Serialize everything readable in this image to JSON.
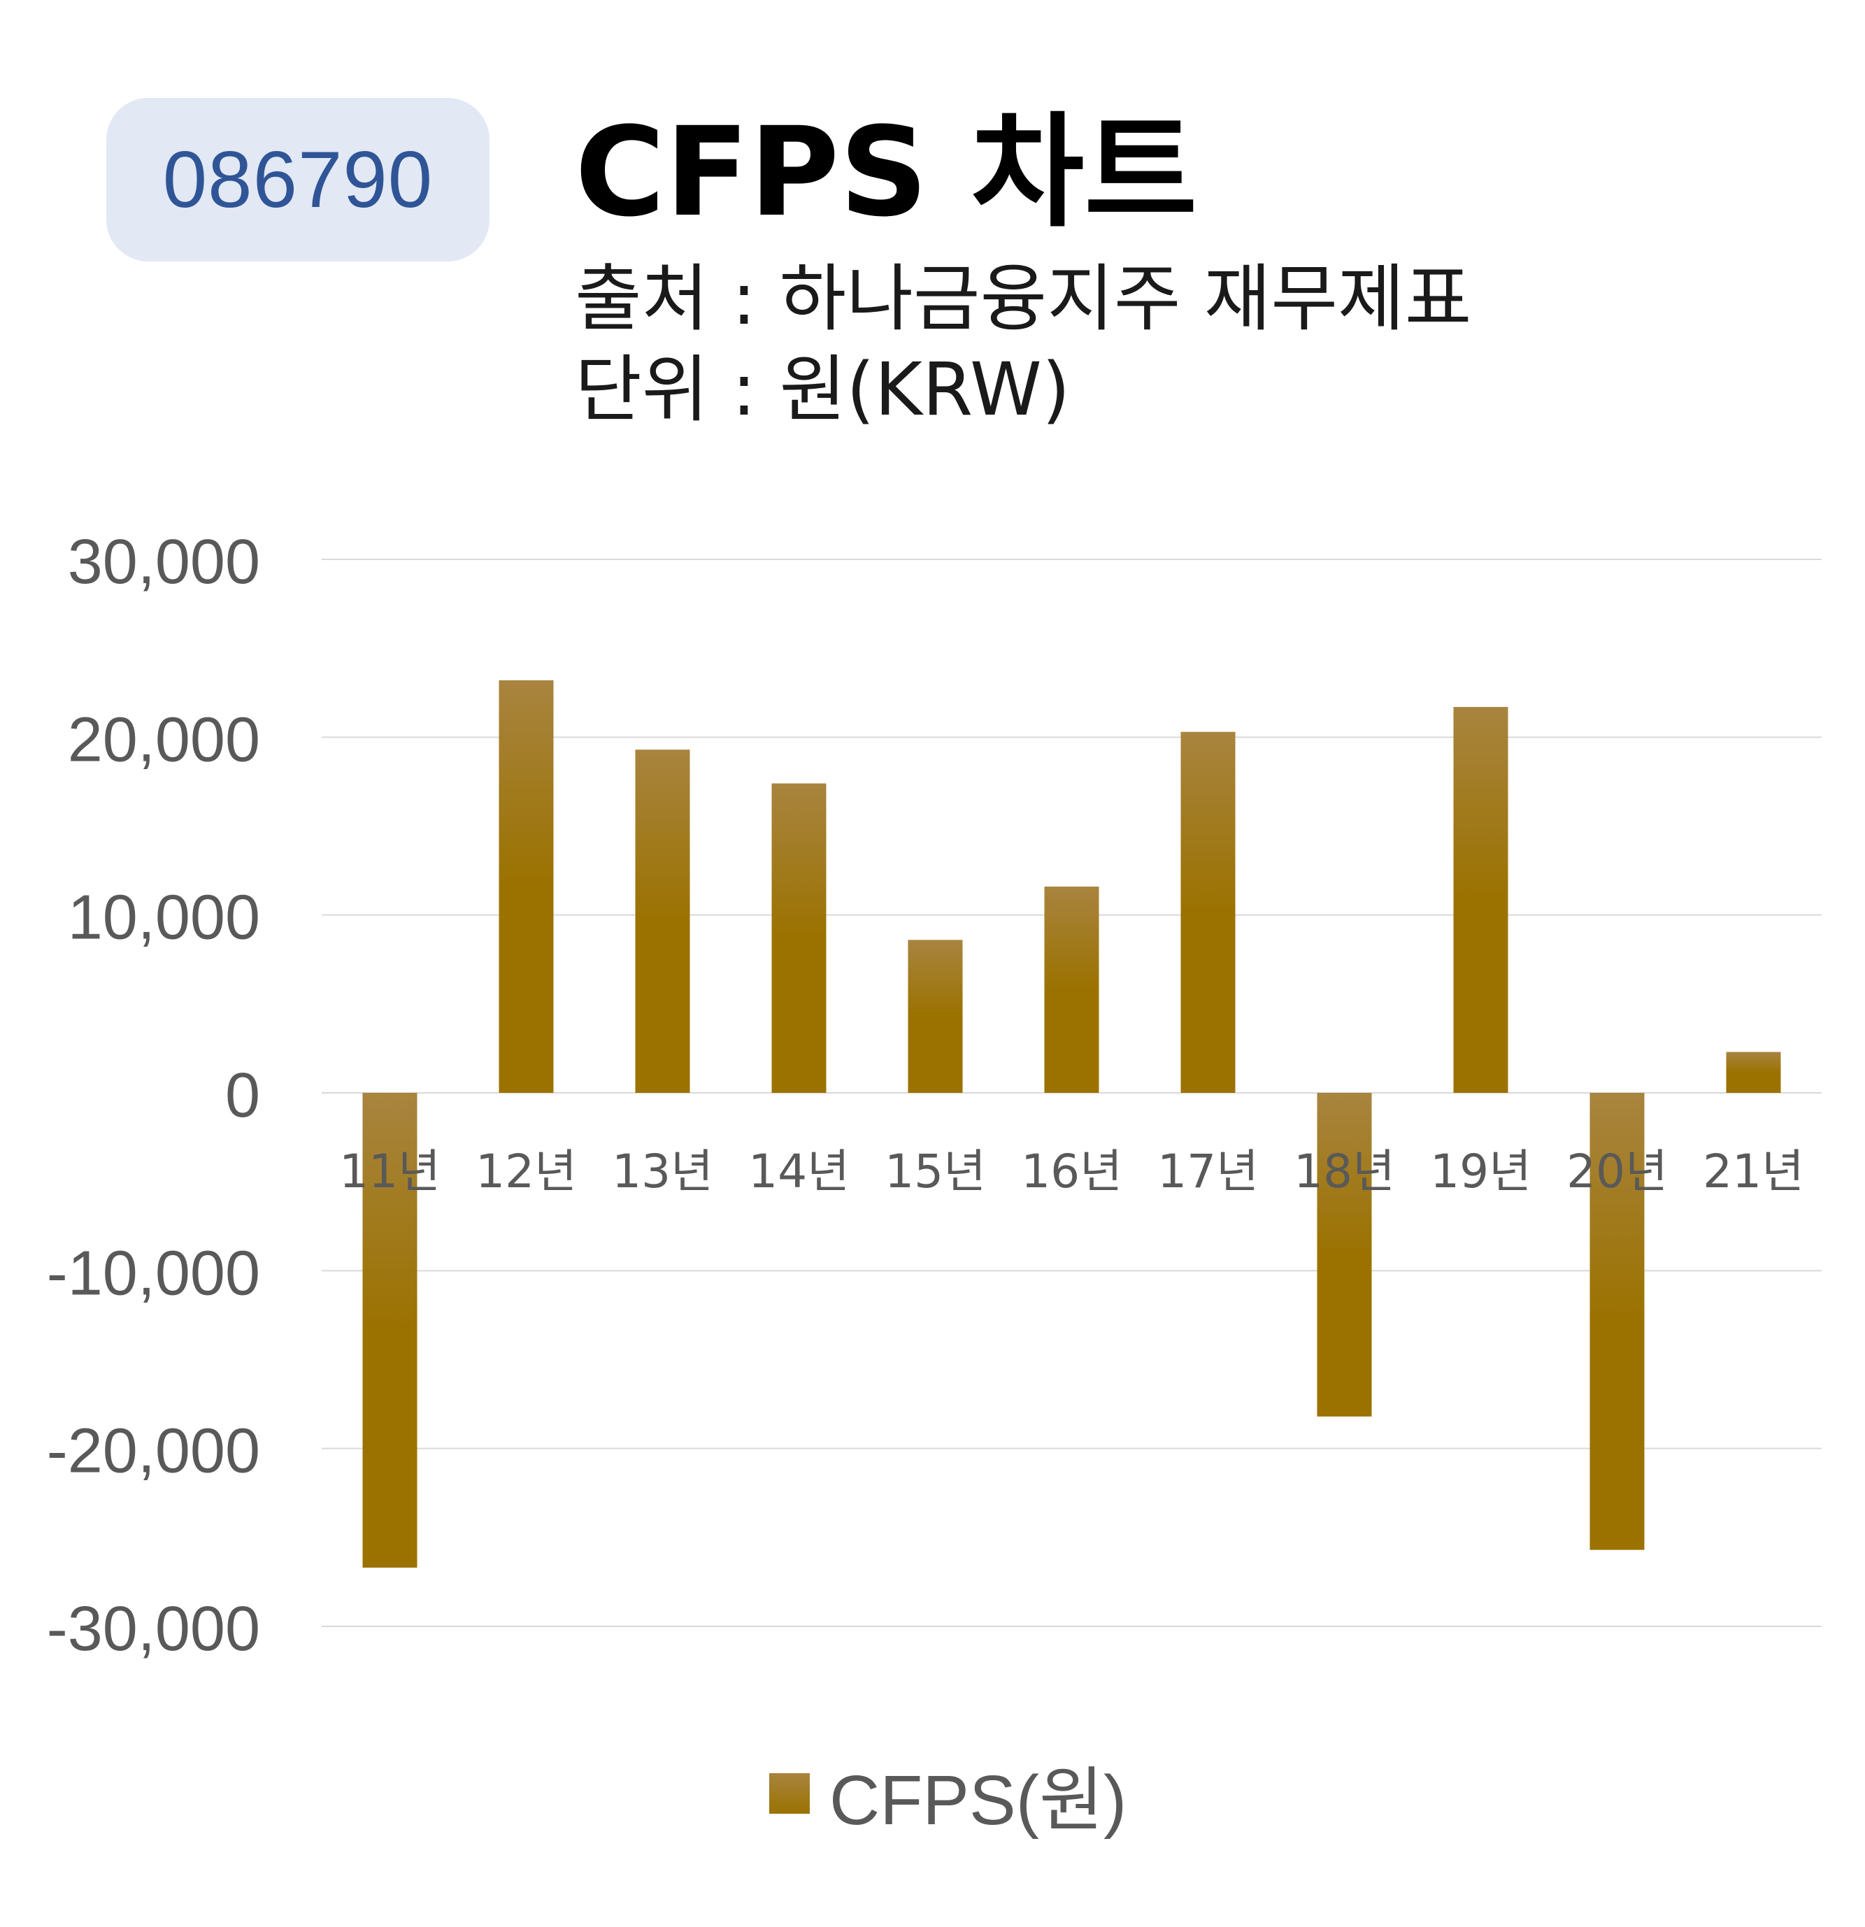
{
  "header": {
    "code": "086790",
    "title": "CFPS 차트",
    "source": "출처 : 하나금융지주 재무제표",
    "unit": "단위 : 원(KRW)"
  },
  "colors": {
    "bar": "#9b7200",
    "bar_top": "#a8843f",
    "badge_bg": "#e2e8f4",
    "badge_text": "#2f5597",
    "axis_text": "#595959",
    "grid": "#d9d9d9"
  },
  "chart_data": {
    "type": "bar",
    "categories": [
      "11년",
      "12년",
      "13년",
      "14년",
      "15년",
      "16년",
      "17년",
      "18년",
      "19년",
      "20년",
      "21년"
    ],
    "series": [
      {
        "name": "CFPS(원)",
        "values": [
          -26700,
          23200,
          19300,
          17400,
          8600,
          11600,
          20300,
          -18200,
          21700,
          -25700,
          2300
        ]
      }
    ],
    "ylim": [
      -30000,
      30000
    ],
    "yticks": [
      30000,
      20000,
      10000,
      0,
      -10000,
      -20000,
      -30000
    ],
    "ytick_labels": [
      "30,000",
      "20,000",
      "10,000",
      "0",
      "-10,000",
      "-20,000",
      "-30,000"
    ],
    "grid": true,
    "legend": "bottom"
  }
}
